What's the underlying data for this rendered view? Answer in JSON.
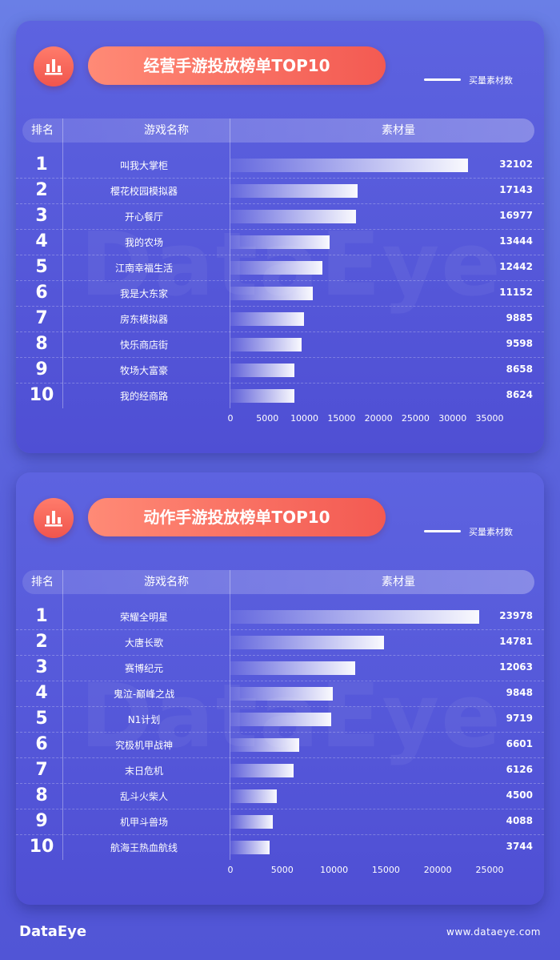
{
  "chart_data": [
    {
      "type": "bar",
      "orientation": "horizontal",
      "title": "经营手游投放榜单TOP10",
      "legend": "买量素材数",
      "headers": {
        "rank": "排名",
        "name": "游戏名称",
        "value": "素材量"
      },
      "ranks": [
        "1",
        "2",
        "3",
        "4",
        "5",
        "6",
        "7",
        "8",
        "9",
        "10"
      ],
      "categories": [
        "叫我大掌柜",
        "樱花校园模拟器",
        "开心餐厅",
        "我的农场",
        "江南幸福生活",
        "我是大东家",
        "房东模拟器",
        "快乐商店街",
        "牧场大富豪",
        "我的经商路"
      ],
      "values": [
        32102,
        17143,
        16977,
        13444,
        12442,
        11152,
        9885,
        9598,
        8658,
        8624
      ],
      "xlim": [
        0,
        35000
      ],
      "xticks": [
        "0",
        "5000",
        "10000",
        "15000",
        "20000",
        "25000",
        "30000",
        "35000"
      ]
    },
    {
      "type": "bar",
      "orientation": "horizontal",
      "title": "动作手游投放榜单TOP10",
      "legend": "买量素材数",
      "headers": {
        "rank": "排名",
        "name": "游戏名称",
        "value": "素材量"
      },
      "ranks": [
        "1",
        "2",
        "3",
        "4",
        "5",
        "6",
        "7",
        "8",
        "9",
        "10"
      ],
      "categories": [
        "荣耀全明星",
        "大唐长歌",
        "赛博纪元",
        "鬼泣-巅峰之战",
        "N1计划",
        "究极机甲战神",
        "末日危机",
        "乱斗火柴人",
        "机甲斗兽场",
        "航海王热血航线"
      ],
      "values": [
        23978,
        14781,
        12063,
        9848,
        9719,
        6601,
        6126,
        4500,
        4088,
        3744
      ],
      "xlim": [
        0,
        25000
      ],
      "xticks": [
        "0",
        "5000",
        "10000",
        "15000",
        "20000",
        "25000"
      ]
    }
  ],
  "watermark": "DataEye",
  "footer": {
    "logo": "DataEye",
    "url": "www.dataeye.com"
  }
}
